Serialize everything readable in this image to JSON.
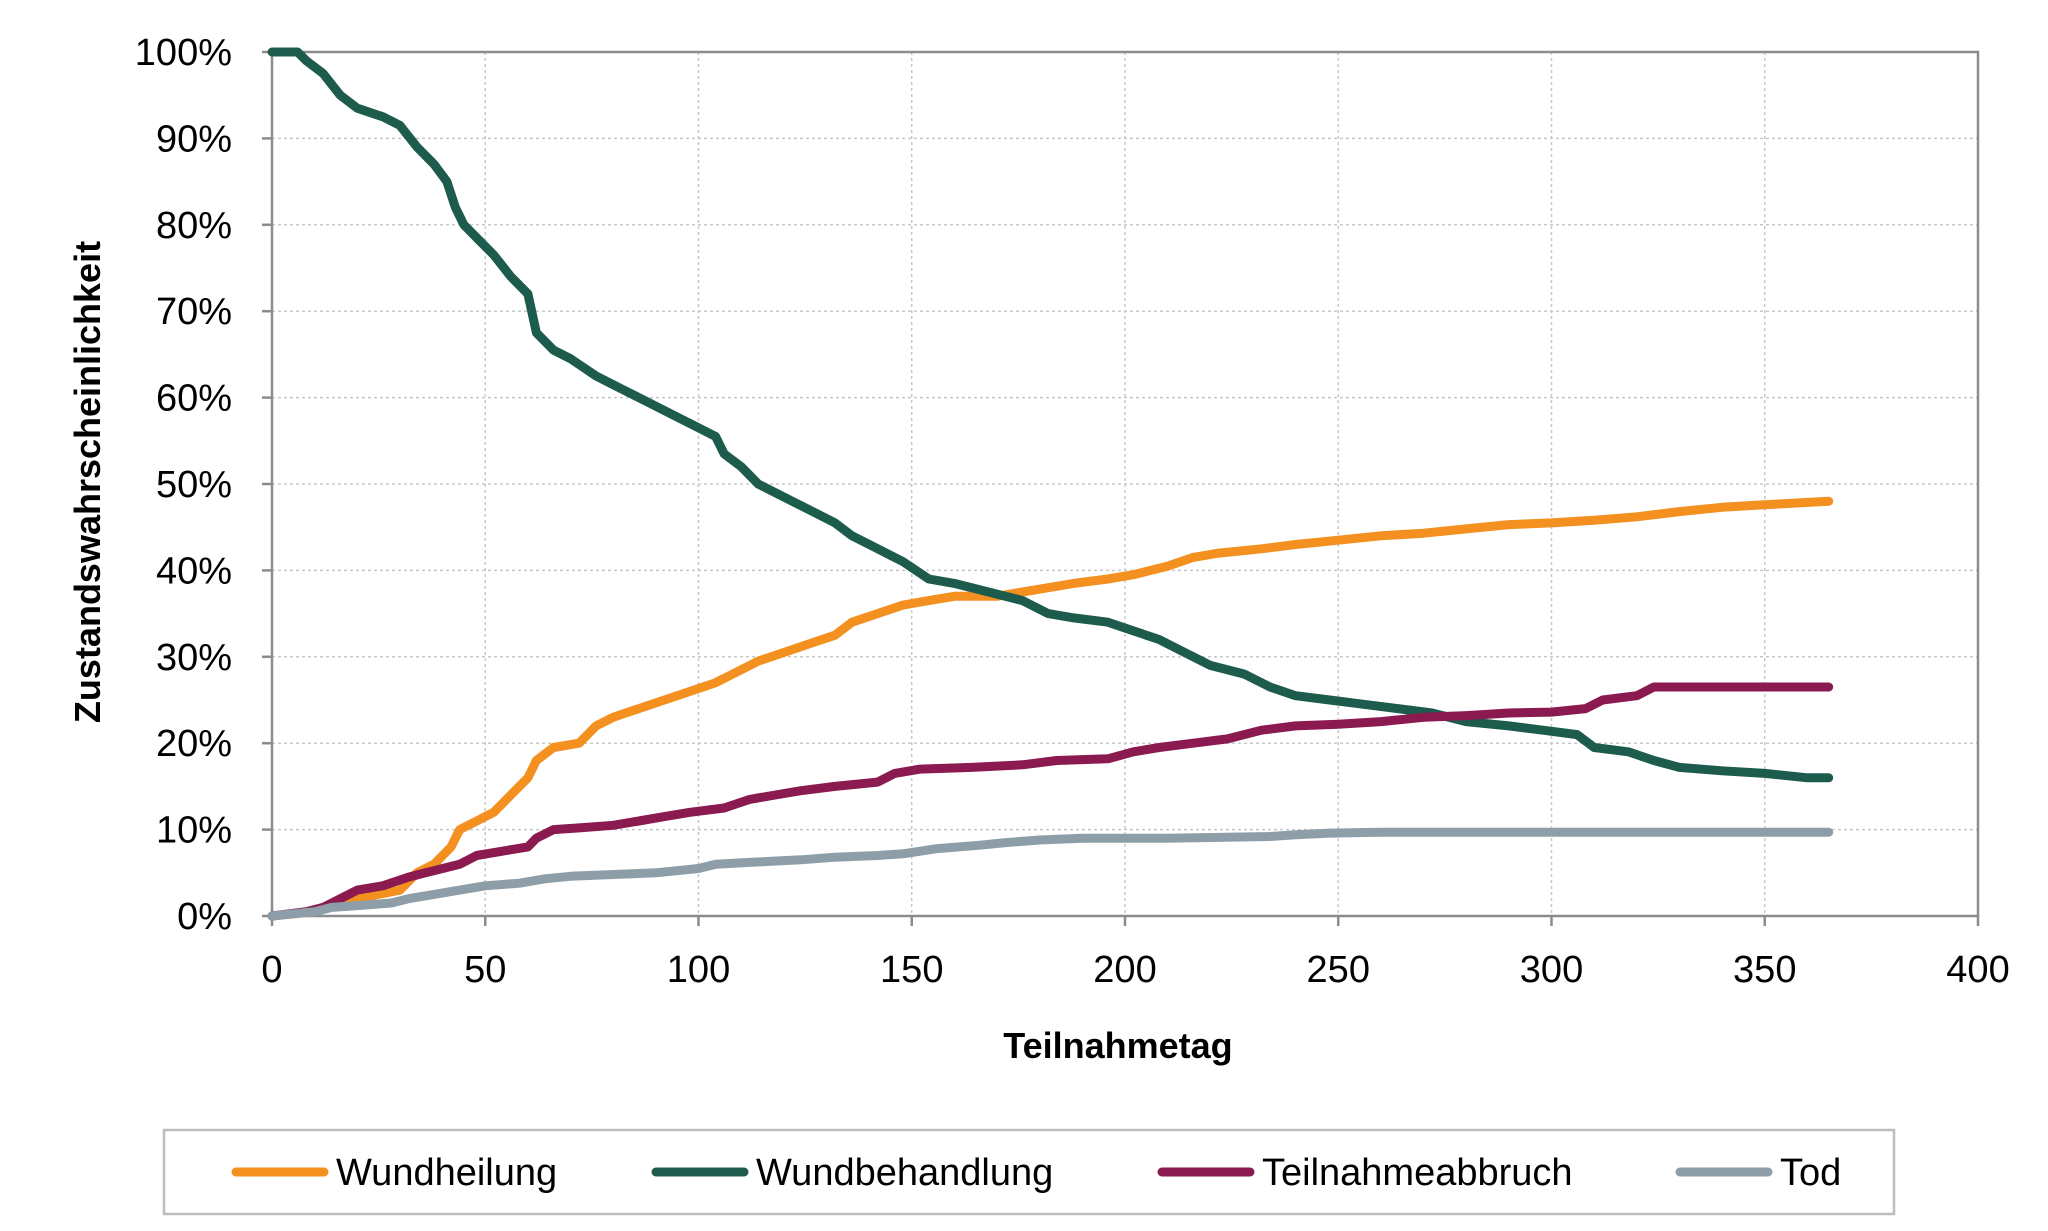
{
  "chart_data": {
    "type": "line",
    "title": "",
    "xlabel": "Teilnahmetag",
    "ylabel": "Zustandswahrscheinlichkeit",
    "xlim": [
      0,
      400
    ],
    "ylim": [
      0,
      100
    ],
    "x_ticks": [
      0,
      50,
      100,
      150,
      200,
      250,
      300,
      350,
      400
    ],
    "x_tick_labels": [
      "0",
      "50",
      "100",
      "150",
      "200",
      "250",
      "300",
      "350",
      "400"
    ],
    "y_ticks": [
      0,
      10,
      20,
      30,
      40,
      50,
      60,
      70,
      80,
      90,
      100
    ],
    "y_tick_labels": [
      "0%",
      "10%",
      "20%",
      "30%",
      "40%",
      "50%",
      "60%",
      "70%",
      "80%",
      "90%",
      "100%"
    ],
    "grid": true,
    "legend_position": "bottom",
    "series": [
      {
        "name": "Wundheilung",
        "color": "#f39020",
        "points": [
          [
            0,
            0
          ],
          [
            10,
            0.5
          ],
          [
            15,
            1.5
          ],
          [
            20,
            2
          ],
          [
            25,
            2.5
          ],
          [
            30,
            3
          ],
          [
            34,
            5
          ],
          [
            38,
            6
          ],
          [
            42,
            8
          ],
          [
            44,
            10
          ],
          [
            48,
            11
          ],
          [
            52,
            12
          ],
          [
            56,
            14
          ],
          [
            60,
            16
          ],
          [
            62,
            18
          ],
          [
            66,
            19.5
          ],
          [
            72,
            20
          ],
          [
            76,
            22
          ],
          [
            80,
            23
          ],
          [
            86,
            24
          ],
          [
            92,
            25
          ],
          [
            98,
            26
          ],
          [
            104,
            27
          ],
          [
            108,
            28
          ],
          [
            114,
            29.5
          ],
          [
            120,
            30.5
          ],
          [
            126,
            31.5
          ],
          [
            132,
            32.5
          ],
          [
            136,
            34
          ],
          [
            142,
            35
          ],
          [
            148,
            36
          ],
          [
            154,
            36.5
          ],
          [
            160,
            37
          ],
          [
            170,
            37
          ],
          [
            176,
            37.5
          ],
          [
            182,
            38
          ],
          [
            188,
            38.5
          ],
          [
            196,
            39
          ],
          [
            202,
            39.5
          ],
          [
            210,
            40.5
          ],
          [
            216,
            41.5
          ],
          [
            222,
            42
          ],
          [
            232,
            42.5
          ],
          [
            240,
            43
          ],
          [
            250,
            43.5
          ],
          [
            260,
            44
          ],
          [
            270,
            44.3
          ],
          [
            280,
            44.8
          ],
          [
            290,
            45.3
          ],
          [
            300,
            45.5
          ],
          [
            310,
            45.8
          ],
          [
            320,
            46.2
          ],
          [
            330,
            46.8
          ],
          [
            340,
            47.3
          ],
          [
            350,
            47.6
          ],
          [
            365,
            48
          ]
        ]
      },
      {
        "name": "Wundbehandlung",
        "color": "#1d5c4c",
        "points": [
          [
            0,
            100
          ],
          [
            6,
            100
          ],
          [
            8,
            99
          ],
          [
            12,
            97.5
          ],
          [
            16,
            95
          ],
          [
            20,
            93.5
          ],
          [
            26,
            92.5
          ],
          [
            30,
            91.5
          ],
          [
            34,
            89
          ],
          [
            38,
            87
          ],
          [
            41,
            85
          ],
          [
            43,
            82
          ],
          [
            45,
            80
          ],
          [
            48,
            78.5
          ],
          [
            52,
            76.5
          ],
          [
            56,
            74
          ],
          [
            60,
            72
          ],
          [
            62,
            67.5
          ],
          [
            66,
            65.5
          ],
          [
            70,
            64.5
          ],
          [
            76,
            62.5
          ],
          [
            82,
            61
          ],
          [
            88,
            59.5
          ],
          [
            94,
            58
          ],
          [
            98,
            57
          ],
          [
            104,
            55.5
          ],
          [
            106,
            53.5
          ],
          [
            110,
            52
          ],
          [
            114,
            50
          ],
          [
            120,
            48.5
          ],
          [
            126,
            47
          ],
          [
            132,
            45.5
          ],
          [
            136,
            44
          ],
          [
            142,
            42.5
          ],
          [
            148,
            41
          ],
          [
            154,
            39
          ],
          [
            160,
            38.5
          ],
          [
            168,
            37.5
          ],
          [
            176,
            36.5
          ],
          [
            182,
            35
          ],
          [
            188,
            34.5
          ],
          [
            196,
            34
          ],
          [
            202,
            33
          ],
          [
            208,
            32
          ],
          [
            214,
            30.5
          ],
          [
            220,
            29
          ],
          [
            228,
            28
          ],
          [
            234,
            26.5
          ],
          [
            240,
            25.5
          ],
          [
            248,
            25
          ],
          [
            256,
            24.5
          ],
          [
            264,
            24
          ],
          [
            272,
            23.5
          ],
          [
            280,
            22.5
          ],
          [
            290,
            22
          ],
          [
            298,
            21.5
          ],
          [
            306,
            21
          ],
          [
            310,
            19.5
          ],
          [
            318,
            19
          ],
          [
            324,
            18
          ],
          [
            330,
            17.2
          ],
          [
            340,
            16.8
          ],
          [
            350,
            16.5
          ],
          [
            360,
            16
          ],
          [
            365,
            16
          ]
        ]
      },
      {
        "name": "Teilnahmeabbruch",
        "color": "#8a1a50",
        "points": [
          [
            0,
            0
          ],
          [
            8,
            0.5
          ],
          [
            12,
            1
          ],
          [
            16,
            2
          ],
          [
            20,
            3
          ],
          [
            26,
            3.5
          ],
          [
            32,
            4.5
          ],
          [
            36,
            5
          ],
          [
            44,
            6
          ],
          [
            48,
            7
          ],
          [
            54,
            7.5
          ],
          [
            60,
            8
          ],
          [
            62,
            9
          ],
          [
            66,
            10
          ],
          [
            72,
            10.2
          ],
          [
            80,
            10.5
          ],
          [
            86,
            11
          ],
          [
            92,
            11.5
          ],
          [
            98,
            12
          ],
          [
            106,
            12.5
          ],
          [
            112,
            13.5
          ],
          [
            118,
            14
          ],
          [
            124,
            14.5
          ],
          [
            132,
            15
          ],
          [
            142,
            15.5
          ],
          [
            146,
            16.5
          ],
          [
            152,
            17
          ],
          [
            164,
            17.2
          ],
          [
            176,
            17.5
          ],
          [
            184,
            18
          ],
          [
            196,
            18.2
          ],
          [
            202,
            19
          ],
          [
            208,
            19.5
          ],
          [
            216,
            20
          ],
          [
            224,
            20.5
          ],
          [
            232,
            21.5
          ],
          [
            240,
            22
          ],
          [
            250,
            22.2
          ],
          [
            260,
            22.5
          ],
          [
            270,
            23
          ],
          [
            280,
            23.2
          ],
          [
            290,
            23.5
          ],
          [
            300,
            23.6
          ],
          [
            308,
            24
          ],
          [
            312,
            25
          ],
          [
            320,
            25.5
          ],
          [
            324,
            26.5
          ],
          [
            335,
            26.5
          ],
          [
            365,
            26.5
          ]
        ]
      },
      {
        "name": "Tod",
        "color": "#8e9ea8",
        "points": [
          [
            0,
            0
          ],
          [
            10,
            0.5
          ],
          [
            14,
            1
          ],
          [
            20,
            1.2
          ],
          [
            28,
            1.5
          ],
          [
            32,
            2
          ],
          [
            38,
            2.5
          ],
          [
            44,
            3
          ],
          [
            50,
            3.5
          ],
          [
            58,
            3.8
          ],
          [
            64,
            4.3
          ],
          [
            70,
            4.6
          ],
          [
            80,
            4.8
          ],
          [
            90,
            5
          ],
          [
            100,
            5.5
          ],
          [
            104,
            6
          ],
          [
            112,
            6.2
          ],
          [
            124,
            6.5
          ],
          [
            132,
            6.8
          ],
          [
            142,
            7
          ],
          [
            148,
            7.2
          ],
          [
            156,
            7.8
          ],
          [
            166,
            8.2
          ],
          [
            172,
            8.5
          ],
          [
            180,
            8.8
          ],
          [
            190,
            9
          ],
          [
            210,
            9
          ],
          [
            234,
            9.2
          ],
          [
            240,
            9.4
          ],
          [
            248,
            9.6
          ],
          [
            260,
            9.7
          ],
          [
            365,
            9.7
          ]
        ]
      }
    ]
  }
}
